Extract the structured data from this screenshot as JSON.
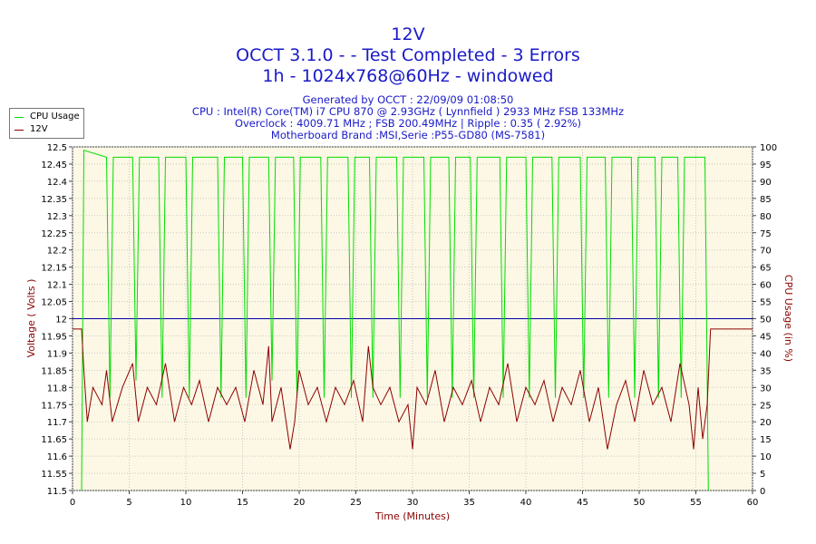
{
  "header": {
    "title": "12V",
    "subtitle1": "OCCT 3.1.0 -  - Test Completed - 3 Errors",
    "subtitle2": "1h - 1024x768@60Hz - windowed",
    "info": [
      "Generated by OCCT : 22/09/09 01:08:50",
      "CPU : Intel(R) Core(TM) i7 CPU 870 @ 2.93GHz ( Lynnfield ) 2933 MHz FSB 133MHz",
      "Overclock : 4009.71 MHz ; FSB 200.49MHz | Ripple : 0.35 ( 2.92%)",
      "Motherboard Brand :MSI,Serie :P55-GD80 (MS-7581)"
    ]
  },
  "legend": [
    {
      "label": "CPU Usage",
      "color": "#00dd00"
    },
    {
      "label": "12V",
      "color": "#8b0000"
    }
  ],
  "chart_data": {
    "type": "line",
    "xlabel": "Time (Minutes)",
    "ylabel_left": "Voltage ( Volts )",
    "ylabel_right": "CPU Usage (in %)",
    "xlim": [
      0,
      60
    ],
    "ylim_left": [
      11.5,
      12.5
    ],
    "ylim_right": [
      0,
      100
    ],
    "x_ticks": [
      0,
      5,
      10,
      15,
      20,
      25,
      30,
      35,
      40,
      45,
      50,
      55,
      60
    ],
    "y_left_ticks": [
      "11.5",
      "11.55",
      "11.6",
      "11.65",
      "11.7",
      "11.75",
      "11.8",
      "11.85",
      "11.9",
      "11.95",
      "12",
      "12.05",
      "12.1",
      "12.15",
      "12.2",
      "12.25",
      "12.3",
      "12.35",
      "12.4",
      "12.45",
      "12.5"
    ],
    "y_right_ticks": [
      0,
      5,
      10,
      15,
      20,
      25,
      30,
      35,
      40,
      45,
      50,
      55,
      60,
      65,
      70,
      75,
      80,
      85,
      90,
      95,
      100
    ],
    "reference_line": {
      "y": 12.0,
      "color": "#0000aa"
    },
    "background_color": "#fdf8e5",
    "grid": true,
    "series": [
      {
        "name": "CPU Usage",
        "axis": "right",
        "color": "#00dd00",
        "x": [
          0.8,
          1.0,
          3.0,
          3.3,
          3.6,
          5.3,
          5.6,
          5.9,
          7.6,
          7.9,
          8.2,
          10.0,
          10.3,
          10.6,
          12.8,
          13.1,
          13.4,
          15.0,
          15.3,
          15.6,
          17.3,
          17.6,
          17.9,
          19.5,
          19.8,
          20.1,
          21.9,
          22.2,
          22.5,
          24.3,
          24.6,
          24.9,
          26.2,
          26.5,
          26.8,
          28.6,
          28.9,
          29.2,
          31.0,
          31.3,
          31.6,
          33.2,
          33.5,
          33.8,
          35.1,
          35.4,
          35.7,
          37.7,
          38.0,
          38.3,
          40.0,
          40.3,
          40.6,
          42.3,
          42.6,
          42.9,
          44.8,
          45.1,
          45.4,
          47.0,
          47.3,
          47.6,
          49.3,
          49.6,
          49.9,
          51.4,
          51.7,
          52.0,
          53.4,
          53.7,
          54.0,
          55.5,
          55.8,
          56.1
        ],
        "values": [
          0,
          99,
          97,
          27,
          97,
          97,
          32,
          97,
          97,
          27,
          97,
          97,
          27,
          97,
          97,
          27,
          97,
          97,
          27,
          97,
          97,
          32,
          97,
          97,
          27,
          97,
          97,
          27,
          97,
          97,
          27,
          97,
          97,
          27,
          97,
          97,
          27,
          97,
          97,
          27,
          97,
          97,
          27,
          97,
          97,
          27,
          97,
          97,
          27,
          97,
          97,
          27,
          97,
          97,
          27,
          97,
          97,
          27,
          97,
          97,
          27,
          97,
          97,
          27,
          97,
          97,
          27,
          97,
          97,
          27,
          97,
          97,
          97,
          0
        ]
      },
      {
        "name": "12V",
        "axis": "left",
        "color": "#8b0000",
        "x": [
          0,
          0.8,
          1.0,
          1.3,
          1.8,
          2.6,
          3.0,
          3.5,
          4.4,
          5.3,
          5.8,
          6.6,
          7.4,
          8.2,
          9.0,
          9.8,
          10.5,
          11.2,
          12.0,
          12.8,
          13.6,
          14.4,
          15.2,
          16.0,
          16.8,
          17.3,
          17.6,
          18.4,
          19.2,
          19.6,
          20.0,
          20.8,
          21.6,
          22.4,
          23.2,
          24.0,
          24.8,
          25.6,
          26.1,
          26.5,
          27.2,
          28.0,
          28.8,
          29.6,
          30.0,
          30.4,
          31.2,
          32.0,
          32.8,
          33.6,
          34.4,
          35.2,
          36.0,
          36.8,
          37.6,
          38.4,
          39.2,
          40.0,
          40.8,
          41.6,
          42.4,
          43.2,
          44.0,
          44.8,
          45.6,
          46.4,
          47.2,
          48.0,
          48.8,
          49.6,
          50.4,
          51.2,
          52.0,
          52.8,
          53.6,
          54.4,
          54.8,
          55.2,
          55.6,
          56.0,
          56.3,
          60
        ],
        "values": [
          11.97,
          11.97,
          11.85,
          11.7,
          11.8,
          11.75,
          11.85,
          11.7,
          11.8,
          11.87,
          11.7,
          11.8,
          11.75,
          11.87,
          11.7,
          11.8,
          11.75,
          11.82,
          11.7,
          11.8,
          11.75,
          11.8,
          11.7,
          11.85,
          11.75,
          11.92,
          11.7,
          11.8,
          11.62,
          11.7,
          11.85,
          11.75,
          11.8,
          11.7,
          11.8,
          11.75,
          11.82,
          11.7,
          11.92,
          11.8,
          11.75,
          11.8,
          11.7,
          11.75,
          11.62,
          11.8,
          11.75,
          11.85,
          11.7,
          11.8,
          11.75,
          11.82,
          11.7,
          11.8,
          11.75,
          11.87,
          11.7,
          11.8,
          11.75,
          11.82,
          11.7,
          11.8,
          11.75,
          11.85,
          11.7,
          11.8,
          11.62,
          11.75,
          11.82,
          11.7,
          11.85,
          11.75,
          11.8,
          11.7,
          11.87,
          11.75,
          11.62,
          11.8,
          11.65,
          11.75,
          11.97,
          11.97
        ]
      }
    ]
  }
}
